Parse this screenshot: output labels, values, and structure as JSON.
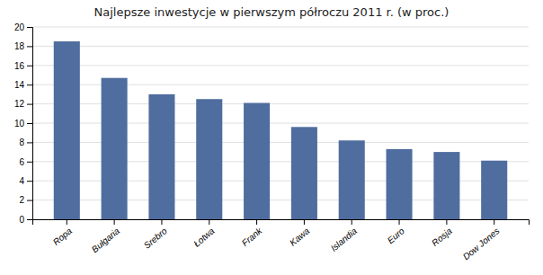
{
  "chart_data": {
    "type": "bar",
    "title": "Najlepsze inwestycje w pierwszym półroczu 2011 r. (w proc.)",
    "categories": [
      "Ropa",
      "Bułgaria",
      "Srebro",
      "Łotwa",
      "Frank",
      "Kawa",
      "Islandia",
      "Euro",
      "Rosja",
      "Dow Jones"
    ],
    "values": [
      18.5,
      14.7,
      13.0,
      12.5,
      12.1,
      9.6,
      8.2,
      7.3,
      7.0,
      6.1
    ],
    "color": "#4f6d9e",
    "ylim": [
      0,
      20
    ],
    "yticks": [
      0,
      2,
      4,
      6,
      8,
      10,
      12,
      14,
      16,
      18,
      20
    ],
    "grid": true
  }
}
